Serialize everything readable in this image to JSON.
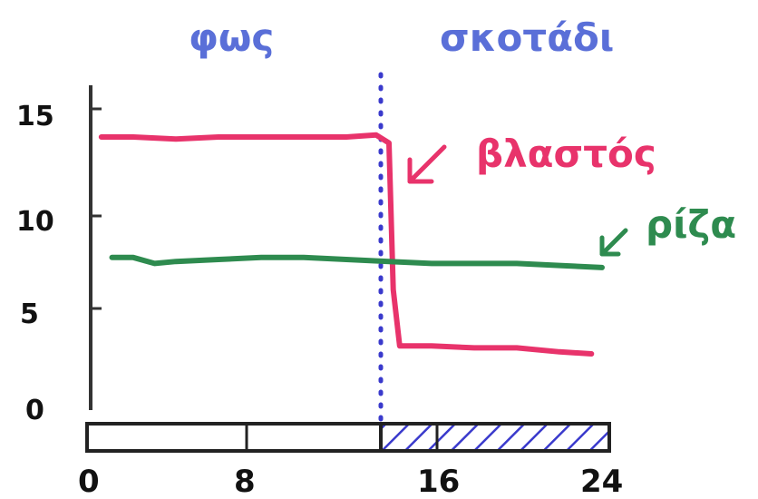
{
  "chart_data": {
    "type": "line",
    "title": "",
    "xlabel": "",
    "ylabel": "",
    "xlim": [
      0,
      24
    ],
    "ylim": [
      0,
      15
    ],
    "x_ticks": [
      "0",
      "8",
      "16",
      "24"
    ],
    "y_ticks": [
      "0",
      "5",
      "10",
      "15"
    ],
    "grid": false,
    "period_labels": {
      "light": "φως",
      "dark": "σκοτάδι"
    },
    "light_dark_switch_x": 13.8,
    "series": [
      {
        "name": "βλαστός",
        "color": "#e8336b",
        "points": [
          [
            0.5,
            13.6
          ],
          [
            2,
            13.6
          ],
          [
            4,
            13.5
          ],
          [
            6,
            13.6
          ],
          [
            8,
            13.6
          ],
          [
            10,
            13.6
          ],
          [
            12,
            13.6
          ],
          [
            13.4,
            13.7
          ],
          [
            14.0,
            13.3
          ],
          [
            14.2,
            6.0
          ],
          [
            14.5,
            3.2
          ],
          [
            16,
            3.2
          ],
          [
            18,
            3.1
          ],
          [
            20,
            3.1
          ],
          [
            22,
            2.9
          ],
          [
            23.5,
            2.8
          ]
        ]
      },
      {
        "name": "ρίζα",
        "color": "#2e8b4f",
        "points": [
          [
            1,
            7.6
          ],
          [
            2,
            7.6
          ],
          [
            3,
            7.3
          ],
          [
            4,
            7.4
          ],
          [
            6,
            7.5
          ],
          [
            8,
            7.6
          ],
          [
            10,
            7.6
          ],
          [
            12,
            7.5
          ],
          [
            14,
            7.4
          ],
          [
            16,
            7.3
          ],
          [
            18,
            7.3
          ],
          [
            20,
            7.3
          ],
          [
            22,
            7.2
          ],
          [
            24,
            7.1
          ]
        ]
      }
    ],
    "colors": {
      "axis": "#333333",
      "light_bar_fill": "#ffffff",
      "dark_bar_hatch": "#3a3acc",
      "divider": "#3a3acc",
      "period_label": "#5a6fd8"
    }
  }
}
